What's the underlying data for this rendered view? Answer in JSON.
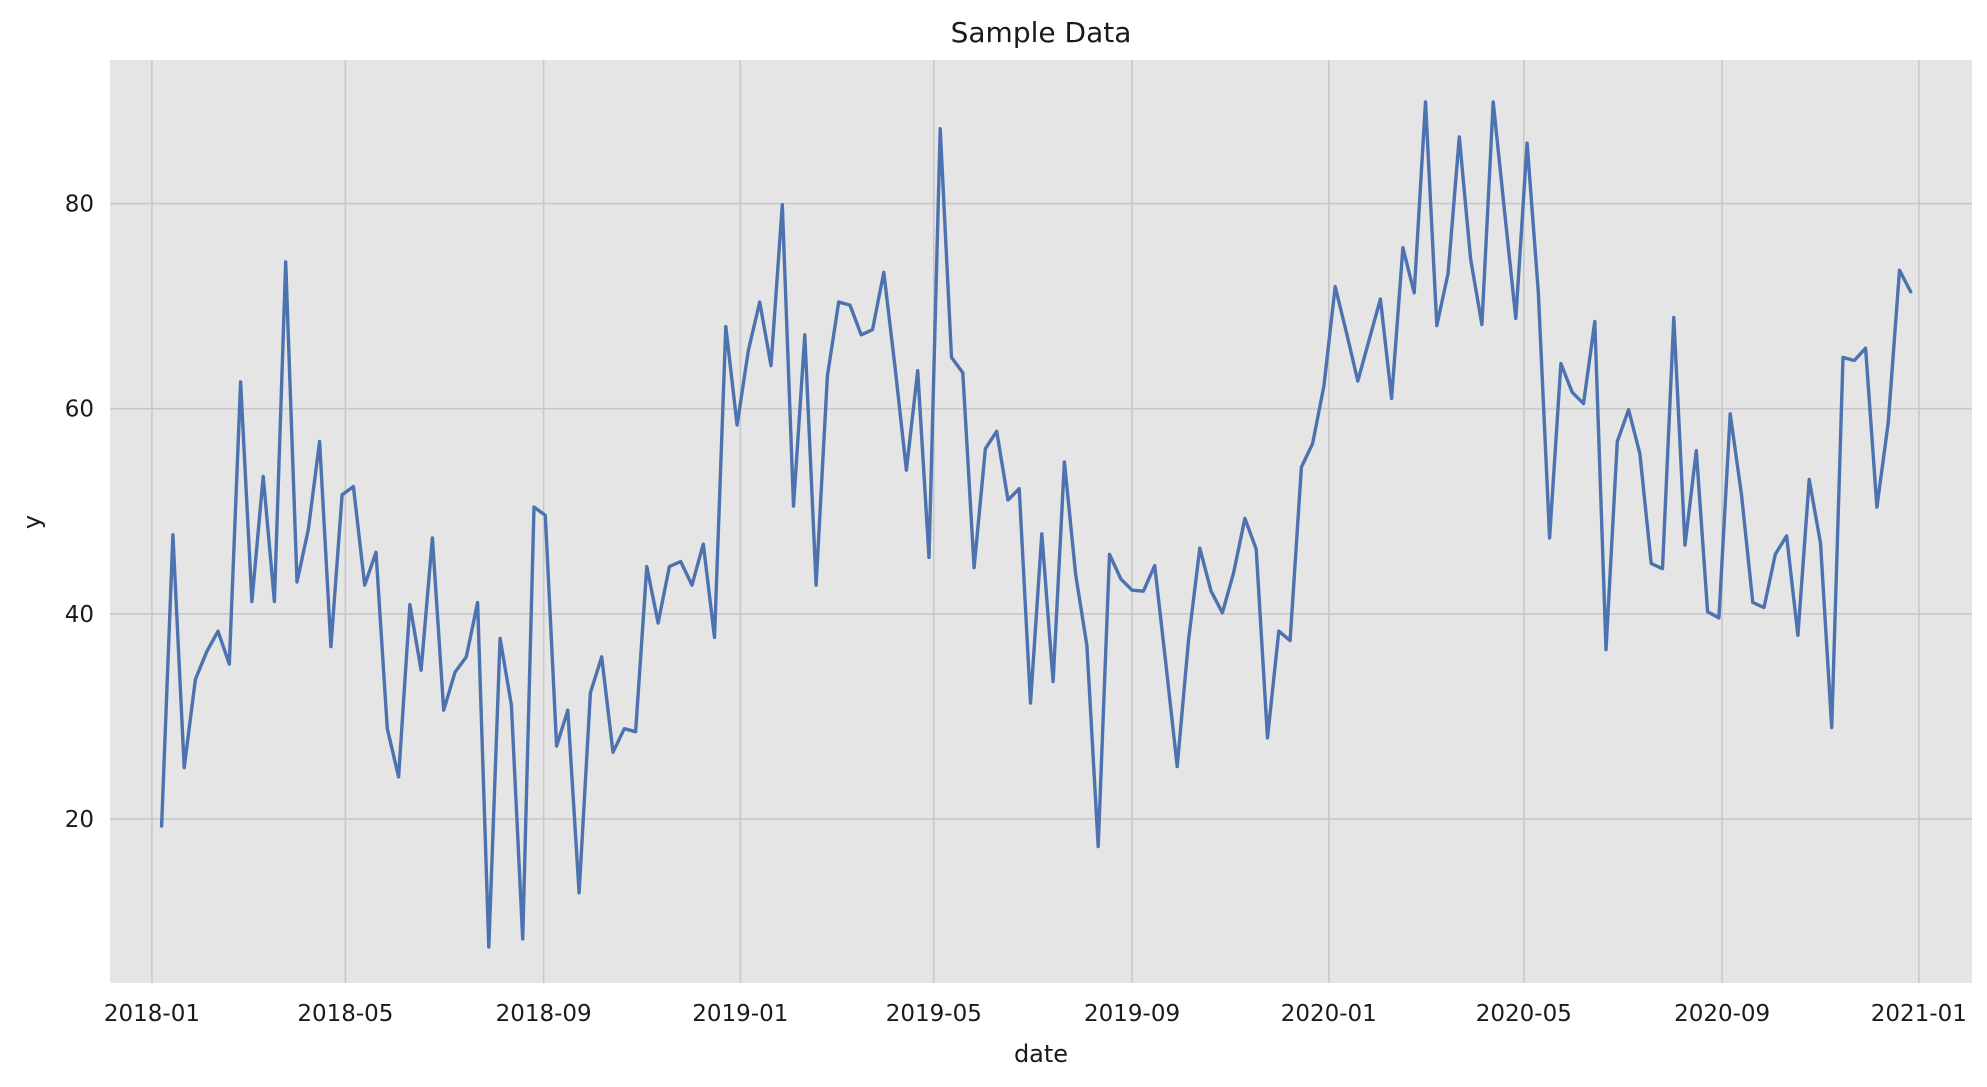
{
  "chart_data": {
    "type": "line",
    "title": "Sample Data",
    "xlabel": "date",
    "ylabel": "y",
    "xlim": [
      "2017-12-06",
      "2021-02-03"
    ],
    "ylim": [
      4,
      94
    ],
    "x_ticks": [
      "2018-01-01",
      "2018-05-01",
      "2018-09-01",
      "2019-01-01",
      "2019-05-01",
      "2019-09-01",
      "2020-01-01",
      "2020-05-01",
      "2020-09-01",
      "2021-01-01"
    ],
    "x_tick_labels": [
      "2018-01",
      "2018-05",
      "2018-09",
      "2019-01",
      "2019-05",
      "2019-09",
      "2020-01",
      "2020-05",
      "2020-09",
      "2021-01"
    ],
    "y_ticks": [
      20,
      40,
      60,
      80
    ],
    "y_tick_labels": [
      "20",
      "40",
      "60",
      "80"
    ],
    "grid": true,
    "background_color": "#e5e5e5",
    "grid_color": "#c8c8c8",
    "series": [
      {
        "color": "#4c72b0",
        "x": [
          "2018-01-07",
          "2018-01-14",
          "2018-01-21",
          "2018-01-28",
          "2018-02-04",
          "2018-02-11",
          "2018-02-18",
          "2018-02-25",
          "2018-03-04",
          "2018-03-11",
          "2018-03-18",
          "2018-03-25",
          "2018-04-01",
          "2018-04-08",
          "2018-04-15",
          "2018-04-22",
          "2018-04-29",
          "2018-05-06",
          "2018-05-13",
          "2018-05-20",
          "2018-05-27",
          "2018-06-03",
          "2018-06-10",
          "2018-06-17",
          "2018-06-24",
          "2018-07-01",
          "2018-07-08",
          "2018-07-15",
          "2018-07-22",
          "2018-07-29",
          "2018-08-05",
          "2018-08-12",
          "2018-08-19",
          "2018-08-26",
          "2018-09-02",
          "2018-09-09",
          "2018-09-16",
          "2018-09-23",
          "2018-09-30",
          "2018-10-07",
          "2018-10-14",
          "2018-10-21",
          "2018-10-28",
          "2018-11-04",
          "2018-11-11",
          "2018-11-18",
          "2018-11-25",
          "2018-12-02",
          "2018-12-09",
          "2018-12-16",
          "2018-12-23",
          "2018-12-30",
          "2019-01-06",
          "2019-01-13",
          "2019-01-20",
          "2019-01-27",
          "2019-02-03",
          "2019-02-10",
          "2019-02-17",
          "2019-02-24",
          "2019-03-03",
          "2019-03-10",
          "2019-03-17",
          "2019-03-24",
          "2019-03-31",
          "2019-04-07",
          "2019-04-14",
          "2019-04-21",
          "2019-04-28",
          "2019-05-05",
          "2019-05-12",
          "2019-05-19",
          "2019-05-26",
          "2019-06-02",
          "2019-06-09",
          "2019-06-16",
          "2019-06-23",
          "2019-06-30",
          "2019-07-07",
          "2019-07-14",
          "2019-07-21",
          "2019-07-28",
          "2019-08-04",
          "2019-08-11",
          "2019-08-18",
          "2019-08-25",
          "2019-09-01",
          "2019-09-08",
          "2019-09-15",
          "2019-09-22",
          "2019-09-29",
          "2019-10-06",
          "2019-10-13",
          "2019-10-20",
          "2019-10-27",
          "2019-11-03",
          "2019-11-10",
          "2019-11-17",
          "2019-11-24",
          "2019-12-01",
          "2019-12-08",
          "2019-12-15",
          "2019-12-22",
          "2019-12-29",
          "2020-01-05",
          "2020-01-12",
          "2020-01-19",
          "2020-01-26",
          "2020-02-02",
          "2020-02-09",
          "2020-02-16",
          "2020-02-23",
          "2020-03-01",
          "2020-03-08",
          "2020-03-15",
          "2020-03-22",
          "2020-03-29",
          "2020-04-05",
          "2020-04-12",
          "2020-04-19",
          "2020-04-26",
          "2020-05-03",
          "2020-05-10",
          "2020-05-17",
          "2020-05-24",
          "2020-05-31",
          "2020-06-07",
          "2020-06-14",
          "2020-06-21",
          "2020-06-28",
          "2020-07-05",
          "2020-07-12",
          "2020-07-19",
          "2020-07-26",
          "2020-08-02",
          "2020-08-09",
          "2020-08-16",
          "2020-08-23",
          "2020-08-30",
          "2020-09-06",
          "2020-09-13",
          "2020-09-20",
          "2020-09-27",
          "2020-10-04",
          "2020-10-11",
          "2020-10-18",
          "2020-10-25",
          "2020-11-01",
          "2020-11-08",
          "2020-11-15",
          "2020-11-22",
          "2020-11-29",
          "2020-12-06",
          "2020-12-13",
          "2020-12-20",
          "2020-12-27"
        ],
        "y": [
          19.3,
          47.7,
          25.0,
          33.6,
          36.3,
          38.3,
          35.1,
          62.6,
          41.2,
          53.4,
          41.2,
          74.3,
          43.1,
          48.2,
          56.8,
          36.8,
          51.6,
          52.4,
          42.8,
          46.0,
          28.8,
          24.1,
          40.9,
          34.5,
          47.4,
          30.6,
          34.3,
          35.8,
          41.1,
          7.5,
          37.6,
          31.1,
          8.3,
          50.4,
          49.6,
          27.1,
          30.6,
          12.8,
          32.3,
          35.8,
          26.5,
          28.8,
          28.5,
          44.6,
          39.1,
          44.6,
          45.1,
          42.8,
          46.8,
          37.7,
          68.0,
          58.4,
          65.7,
          70.4,
          64.2,
          79.9,
          50.5,
          67.2,
          42.8,
          63.2,
          70.4,
          70.1,
          67.2,
          67.7,
          73.3,
          64.0,
          54.0,
          63.7,
          45.5,
          87.3,
          65.0,
          63.5,
          44.5,
          56.1,
          57.8,
          51.1,
          52.2,
          31.3,
          47.8,
          33.4,
          54.8,
          43.8,
          36.9,
          17.3,
          45.8,
          43.4,
          42.3,
          42.2,
          44.7,
          35.1,
          25.1,
          37.4,
          46.4,
          42.2,
          40.1,
          44.0,
          49.3,
          46.3,
          27.9,
          38.3,
          37.4,
          54.3,
          56.6,
          62.2,
          71.9,
          67.4,
          62.7,
          66.7,
          70.7,
          61.0,
          75.7,
          71.3,
          89.9,
          68.1,
          73.2,
          86.5,
          74.6,
          68.2,
          89.9,
          79.3,
          68.8,
          85.9,
          71.4,
          47.4,
          64.4,
          61.6,
          60.5,
          68.5,
          36.5,
          56.8,
          59.9,
          55.6,
          44.9,
          44.4,
          68.9,
          46.7,
          55.9,
          40.2,
          39.6,
          59.5,
          51.6,
          41.1,
          40.6,
          45.8,
          47.6,
          37.9,
          53.1,
          46.9,
          28.9,
          65.0,
          64.7,
          65.9,
          50.4,
          58.6,
          73.5,
          71.4
        ]
      }
    ]
  }
}
